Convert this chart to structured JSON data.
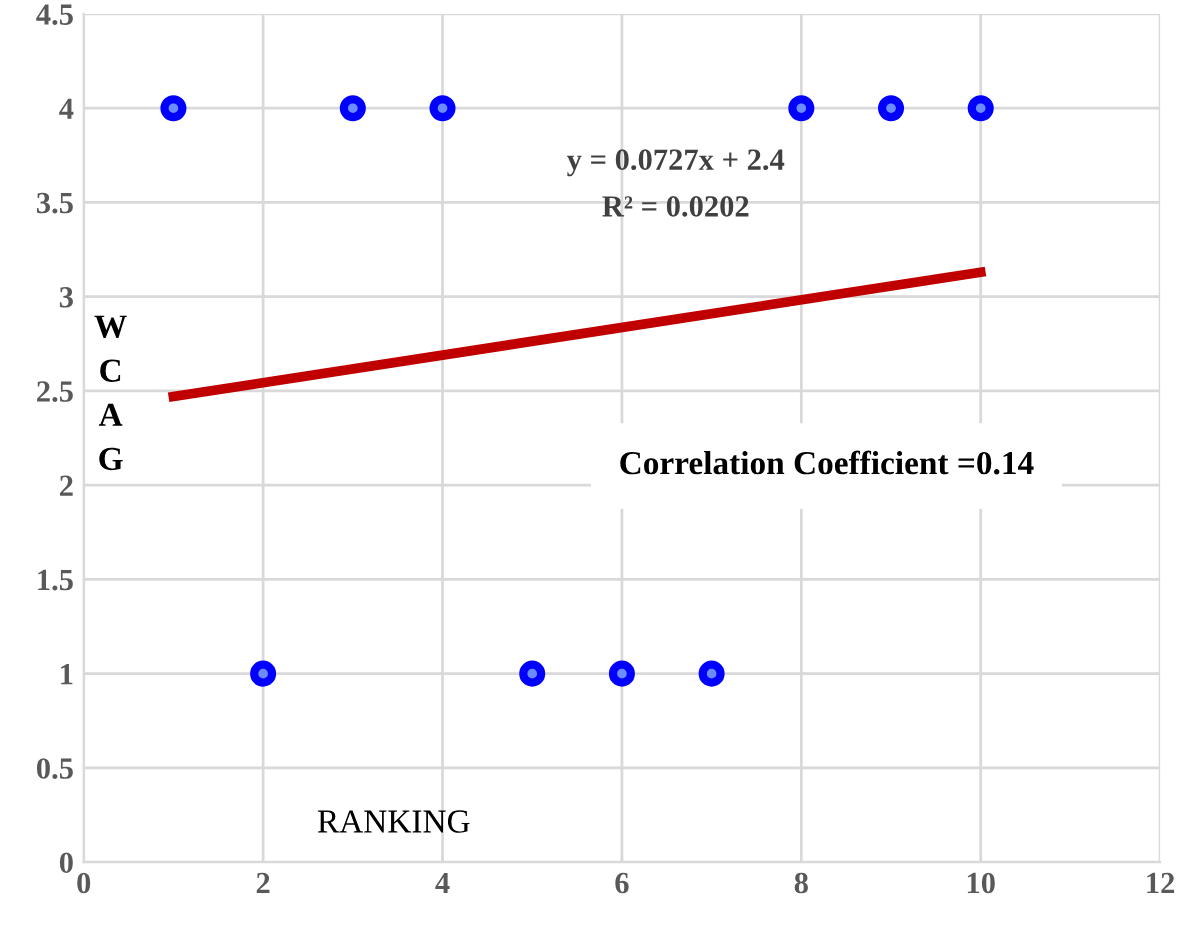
{
  "chart_data": {
    "type": "scatter",
    "xlabel": "RANKING",
    "ylabel": "W C A G",
    "xlim": [
      0,
      12
    ],
    "xticks": [
      0,
      2,
      4,
      6,
      8,
      10,
      12
    ],
    "ylim": [
      0,
      4.5
    ],
    "yticks": [
      0,
      0.5,
      1,
      1.5,
      2,
      2.5,
      3,
      3.5,
      4,
      4.5
    ],
    "grid": true,
    "legend": false,
    "series": [
      {
        "marker": "circle",
        "color": "#0000ff",
        "x": [
          1,
          2,
          3,
          4,
          5,
          6,
          7,
          8,
          9,
          10
        ],
        "values": [
          4,
          1,
          4,
          4,
          1,
          1,
          1,
          4,
          4,
          4
        ]
      },
      {
        "type": "line",
        "color": "#c00000",
        "x": [
          1,
          10
        ],
        "values": [
          2.47,
          3.13
        ],
        "line_style": "solid"
      }
    ],
    "annotations": [
      "y = 0.0727x + 2.4",
      "R² = 0.0202",
      "Correlation Coefficient =0.14"
    ]
  }
}
